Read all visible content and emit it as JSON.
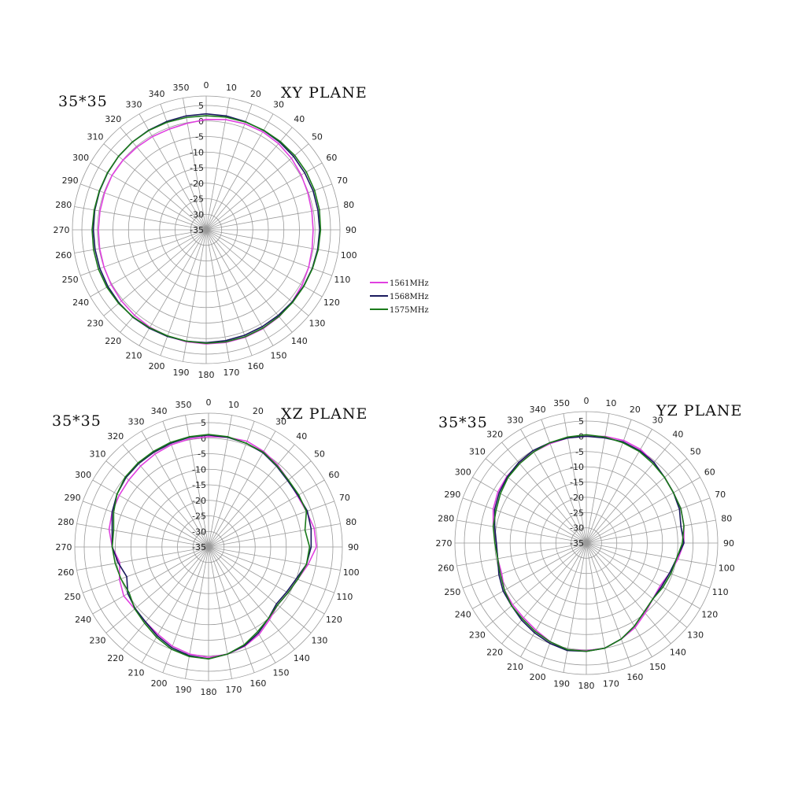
{
  "chart_data": [
    {
      "type": "polar-line",
      "title": "XY PLANE",
      "size_label": "35*35",
      "angle_ticks": [
        "0",
        "10",
        "20",
        "30",
        "40",
        "50",
        "60",
        "70",
        "80",
        "90",
        "100",
        "110",
        "120",
        "130",
        "140",
        "150",
        "160",
        "170",
        "180",
        "190",
        "200",
        "210",
        "220",
        "230",
        "240",
        "250",
        "260",
        "270",
        "280",
        "290",
        "300",
        "310",
        "320",
        "330",
        "340",
        "350"
      ],
      "radial_ticks": [
        5,
        0,
        -5,
        -10,
        -15,
        -20,
        -25,
        -30,
        -35
      ],
      "radial_range": [
        -35,
        5
      ],
      "series": [
        {
          "name": "1561MHz",
          "color": "#e040e0",
          "values": [
            0.5,
            1.0,
            1.3,
            1.4,
            1.2,
            0.8,
            0.3,
            -0.2,
            -0.5,
            -0.6,
            -0.4,
            0.1,
            0.6,
            1.1,
            1.5,
            1.7,
            1.8,
            1.8,
            1.7,
            1.6,
            1.4,
            1.2,
            0.9,
            0.6,
            0.3,
            0.0,
            -0.2,
            -0.3,
            -0.3,
            -0.2,
            0.0,
            -0.1,
            -0.3,
            -0.4,
            -0.5,
            -0.2
          ]
        },
        {
          "name": "1568MHz",
          "color": "#1a1a5e",
          "values": [
            2.3,
            2.2,
            2.0,
            1.9,
            1.8,
            1.7,
            1.6,
            1.6,
            1.5,
            1.5,
            1.4,
            1.3,
            1.2,
            1.1,
            1.0,
            1.0,
            1.1,
            1.2,
            1.3,
            1.4,
            1.5,
            1.6,
            1.7,
            1.6,
            1.5,
            1.4,
            1.3,
            1.3,
            1.4,
            1.5,
            1.6,
            1.8,
            1.9,
            2.0,
            2.1,
            2.2
          ]
        },
        {
          "name": "1575MHz",
          "color": "#1a7a1a",
          "values": [
            1.7,
            1.8,
            1.9,
            2.0,
            2.1,
            2.2,
            2.2,
            2.1,
            2.0,
            1.8,
            1.6,
            1.4,
            1.3,
            1.3,
            1.4,
            1.5,
            1.6,
            1.6,
            1.5,
            1.4,
            1.3,
            1.4,
            1.6,
            1.8,
            1.9,
            1.9,
            1.8,
            1.7,
            1.6,
            1.6,
            1.7,
            1.8,
            1.9,
            1.9,
            1.8,
            1.7
          ]
        }
      ]
    },
    {
      "type": "polar-line",
      "title": "XZ PLANE",
      "size_label": "35*35",
      "angle_ticks": [
        "0",
        "10",
        "20",
        "30",
        "40",
        "50",
        "60",
        "70",
        "80",
        "90",
        "100",
        "110",
        "120",
        "130",
        "140",
        "150",
        "160",
        "170",
        "180",
        "190",
        "200",
        "210",
        "220",
        "230",
        "240",
        "250",
        "260",
        "270",
        "280",
        "290",
        "300",
        "310",
        "320",
        "330",
        "340",
        "350"
      ],
      "radial_ticks": [
        5,
        0,
        -5,
        -10,
        -15,
        -20,
        -25,
        -30,
        -35
      ],
      "radial_range": [
        -35,
        5
      ],
      "series": [
        {
          "name": "1561MHz",
          "color": "#e040e0",
          "values": [
            0.5,
            0.8,
            1.2,
            0.5,
            -0.5,
            -1.5,
            -2.0,
            -1.5,
            -0.5,
            -0.3,
            -2.5,
            -4.5,
            -5.5,
            -6.0,
            -4.5,
            -2.5,
            -1.0,
            0.0,
            0.5,
            0.0,
            -1.0,
            -2.5,
            -3.5,
            -4.0,
            -3.5,
            -4.5,
            -6.0,
            -4.0,
            -2.5,
            -2.0,
            -1.8,
            -1.5,
            -1.0,
            -0.5,
            0.0,
            0.3
          ]
        },
        {
          "name": "1568MHz",
          "color": "#1a1a5e",
          "values": [
            1.0,
            0.8,
            0.5,
            0.0,
            -1.0,
            -1.8,
            -1.8,
            -1.2,
            -1.5,
            -2.0,
            -3.0,
            -5.0,
            -6.0,
            -6.5,
            -5.0,
            -3.0,
            -1.2,
            0.0,
            1.0,
            0.5,
            -0.5,
            -2.0,
            -3.5,
            -4.2,
            -5.0,
            -7.0,
            -5.5,
            -4.0,
            -3.5,
            -2.0,
            -1.0,
            -0.3,
            0.0,
            0.2,
            0.5,
            0.8
          ]
        },
        {
          "name": "1575MHz",
          "color": "#1a7a1a",
          "values": [
            1.2,
            1.0,
            0.5,
            0.2,
            -0.8,
            -1.5,
            -1.5,
            -1.5,
            -3.5,
            -2.5,
            -3.0,
            -4.5,
            -5.5,
            -6.0,
            -5.0,
            -3.5,
            -1.5,
            0.0,
            1.0,
            0.8,
            0.0,
            -1.5,
            -3.0,
            -4.0,
            -5.5,
            -5.0,
            -4.5,
            -4.0,
            -4.0,
            -2.5,
            -1.0,
            0.0,
            0.3,
            0.5,
            0.8,
            1.0
          ]
        }
      ]
    },
    {
      "type": "polar-line",
      "title": "YZ PLANE",
      "size_label": "35*35",
      "angle_ticks": [
        "0",
        "10",
        "20",
        "30",
        "40",
        "50",
        "60",
        "70",
        "80",
        "90",
        "100",
        "110",
        "120",
        "130",
        "140",
        "150",
        "160",
        "170",
        "180",
        "190",
        "200",
        "210",
        "220",
        "230",
        "240",
        "250",
        "260",
        "270",
        "280",
        "290",
        "300",
        "310",
        "320",
        "330",
        "340",
        "350"
      ],
      "radial_ticks": [
        5,
        0,
        -5,
        -10,
        -15,
        -20,
        -25,
        -30,
        -35
      ],
      "radial_range": [
        -35,
        5
      ],
      "series": [
        {
          "name": "1561MHz",
          "color": "#e040e0",
          "values": [
            0.0,
            0.5,
            0.8,
            0.5,
            -0.5,
            -1.5,
            -2.0,
            -2.0,
            -2.5,
            -3.0,
            -4.5,
            -6.0,
            -7.0,
            -6.5,
            -5.0,
            -3.0,
            -1.5,
            0.0,
            0.3,
            0.5,
            -0.5,
            -2.0,
            -3.0,
            -3.5,
            -4.0,
            -5.5,
            -5.5,
            -5.5,
            -4.0,
            -2.5,
            -1.5,
            -1.0,
            -0.8,
            -0.5,
            -0.3,
            0.0
          ]
        },
        {
          "name": "1568MHz",
          "color": "#1a1a5e",
          "values": [
            0.0,
            0.0,
            0.3,
            0.0,
            -0.5,
            -1.5,
            -2.0,
            -2.5,
            -3.5,
            -3.0,
            -5.0,
            -6.0,
            -6.5,
            -6.5,
            -5.5,
            -3.5,
            -1.5,
            0.0,
            0.5,
            0.8,
            0.0,
            -1.0,
            -2.0,
            -3.0,
            -3.5,
            -4.5,
            -5.5,
            -5.5,
            -4.5,
            -3.0,
            -2.0,
            -1.2,
            -0.5,
            0.0,
            0.0,
            0.0
          ]
        },
        {
          "name": "1575MHz",
          "color": "#1a7a1a",
          "values": [
            0.5,
            0.3,
            0.0,
            -0.3,
            -1.0,
            -1.5,
            -2.0,
            -2.0,
            -2.5,
            -3.5,
            -5.0,
            -5.5,
            -6.0,
            -6.5,
            -5.5,
            -3.5,
            -1.5,
            0.0,
            0.5,
            0.5,
            -0.5,
            -1.5,
            -2.5,
            -3.0,
            -4.0,
            -5.0,
            -5.5,
            -5.0,
            -4.0,
            -3.5,
            -2.5,
            -1.5,
            -1.0,
            -0.5,
            0.0,
            0.3
          ]
        }
      ]
    }
  ],
  "legend": {
    "items": [
      {
        "label": "1561MHz",
        "color": "#e040e0"
      },
      {
        "label": "1568MHz",
        "color": "#1a1a5e"
      },
      {
        "label": "1575MHz",
        "color": "#1a7a1a"
      }
    ]
  }
}
